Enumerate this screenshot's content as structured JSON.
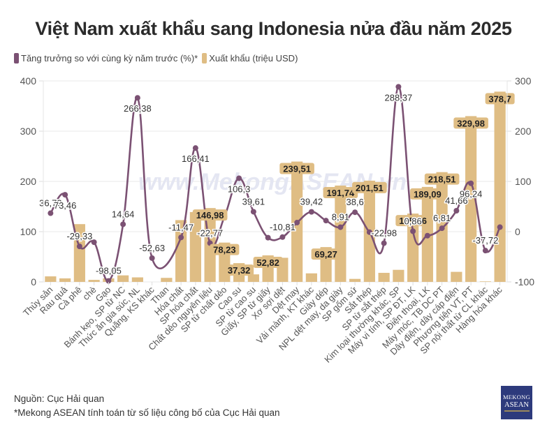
{
  "colors": {
    "line": "#7b5173",
    "bar": "#dfbd84",
    "bar_label_bg": "#dfbd84",
    "grid": "#e8e8e8",
    "watermark": "#e4e6f2"
  },
  "watermark": "www.MekongASEAN.vn",
  "footer": {
    "source": "Nguồn: Cục Hải quan",
    "note": "*Mekong ASEAN tính toán từ số liệu công bố của Cục Hải quan"
  },
  "logo": {
    "line1": "MEKONG",
    "line2": "ASEAN"
  },
  "chart_data": {
    "type": "bar",
    "title": "Việt Nam xuất khẩu sang Indonesia nửa đầu năm 2025",
    "xlabel": "",
    "ylabel_left": "",
    "ylabel_right": "",
    "ylim_left": [
      0,
      400
    ],
    "ylim_right": [
      -100,
      300
    ],
    "yticks_left": [
      0,
      100,
      200,
      300,
      400
    ],
    "yticks_right": [
      -100,
      0,
      100,
      200,
      300
    ],
    "grid": true,
    "legend_position": "top-left",
    "categories": [
      "Thủy sản",
      "Rau quả",
      "Cà phê",
      "chè",
      "Gạo",
      "Bánh kẹo, SP từ NC",
      "Thức ăn gia súc, NL",
      "Quặng, KS khác",
      "Than",
      "Hóa chất",
      "SP hóa chất",
      "Chất dẻo nguyên liệu",
      "SP từ chất dẻo",
      "Cao su",
      "SP từ cao su",
      "Giấy, SP từ giấy",
      "Xơ sợi dệt",
      "Dệt may",
      "Vải mành, KT khác",
      "Giày dép",
      "NPL dệt may, da giày",
      "SP gốm sứ",
      "Sắt thép",
      "SP từ sắt thép",
      "Kim loại thường khác, SP",
      "Máy vi tính, SP ĐT, LK",
      "Điện thoại, LK",
      "Máy móc, TB DC PT",
      "Dây điện, dây cáp điện",
      "Phương tiện VT, PT",
      "SP nội thất từ CL khác",
      "Hàng hóa khác"
    ],
    "series": [
      {
        "name": "Tăng trưởng so với cùng kỳ năm trước (%)*",
        "type": "line",
        "axis": "right",
        "values": [
          36.73,
          73.46,
          -29.33,
          -21,
          -98.05,
          14.64,
          266.38,
          -52.63,
          null,
          -11.47,
          166.41,
          -22.77,
          30,
          106.3,
          39.61,
          -12,
          -10.81,
          18,
          39.42,
          22,
          8.91,
          38.6,
          -1,
          -22.98,
          288.37,
          0.86,
          -8,
          6.81,
          41.66,
          96.24,
          -37.72,
          9
        ],
        "labels": [
          "36,73",
          "73,46",
          "-29,33",
          "",
          "-98,05",
          "14,64",
          "266,38",
          "-52,63",
          "",
          "-11,47",
          "166,41",
          "-22,77",
          "",
          "106,3",
          "39,61",
          "",
          "-10,81",
          "",
          "39,42",
          "",
          "8,91",
          "38,6",
          "",
          "-22,98",
          "288,37",
          "0,86",
          "",
          "6,81",
          "41,66",
          "96,24",
          "-37,72",
          ""
        ]
      },
      {
        "name": "Xuất khẩu (triệu USD)",
        "type": "bar",
        "axis": "left",
        "values": [
          11,
          7,
          115,
          4,
          7,
          13,
          9,
          0,
          8,
          123,
          139,
          146.98,
          78.23,
          37.32,
          15,
          52.82,
          48,
          239.51,
          17,
          69.27,
          191.74,
          6,
          201.51,
          18,
          24,
          135.96,
          189.09,
          218.51,
          20,
          329.98,
          1,
          378.7
        ],
        "labels": [
          "",
          "",
          "",
          "",
          "",
          "",
          "",
          "",
          "",
          "",
          "",
          "146,98",
          "78,23",
          "37,32",
          "",
          "52,82",
          "",
          "239,51",
          "",
          "69,27",
          "191,74",
          "",
          "201,51",
          "",
          "",
          "135,96",
          "189,09",
          "218,51",
          "",
          "329,98",
          "",
          "378,7"
        ]
      }
    ]
  }
}
